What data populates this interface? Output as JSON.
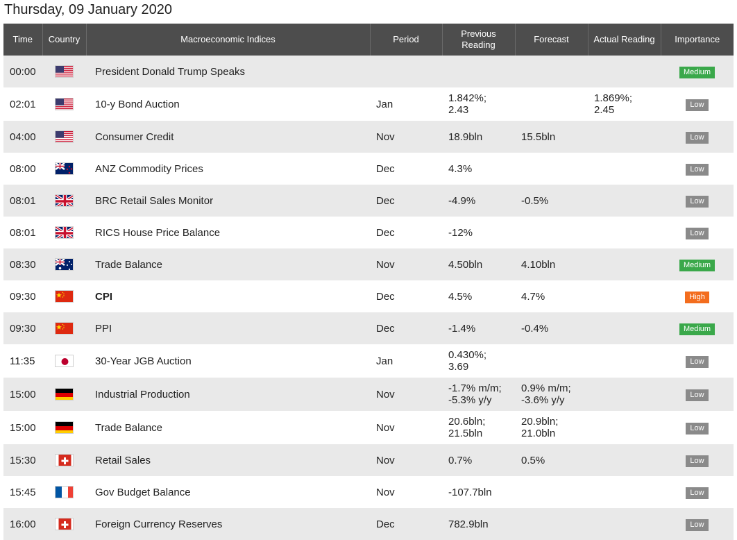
{
  "page": {
    "date_title": "Thursday, 09 January 2020"
  },
  "table": {
    "headers": {
      "time": "Time",
      "country": "Country",
      "index": "Macroeconomic Indices",
      "period": "Period",
      "previous_line1": "Previous",
      "previous_line2": "Reading",
      "forecast": "Forecast",
      "actual": "Actual Reading",
      "importance": "Importance"
    },
    "rows": [
      {
        "time": "00:00",
        "flag": "us-flag-icon",
        "index": "President Donald Trump Speaks",
        "period": "",
        "prev1": "",
        "prev2": "",
        "fc1": "",
        "fc2": "",
        "act1": "",
        "act2": "",
        "importance": "Medium",
        "level": "medium",
        "bold": false
      },
      {
        "time": "02:01",
        "flag": "us-flag-icon",
        "index": "10-y Bond Auction",
        "period": "Jan",
        "prev1": "1.842%;",
        "prev2": "2.43",
        "fc1": "",
        "fc2": "",
        "act1": "1.869%;",
        "act2": "2.45",
        "importance": "Low",
        "level": "low",
        "bold": false
      },
      {
        "time": "04:00",
        "flag": "us-flag-icon",
        "index": "Consumer Credit",
        "period": "Nov",
        "prev1": "18.9bln",
        "prev2": "",
        "fc1": "15.5bln",
        "fc2": "",
        "act1": "",
        "act2": "",
        "importance": "Low",
        "level": "low",
        "bold": false
      },
      {
        "time": "08:00",
        "flag": "nz-flag-icon",
        "index": "ANZ Commodity Prices",
        "period": "Dec",
        "prev1": "4.3%",
        "prev2": "",
        "fc1": "",
        "fc2": "",
        "act1": "",
        "act2": "",
        "importance": "Low",
        "level": "low",
        "bold": false
      },
      {
        "time": "08:01",
        "flag": "uk-flag-icon",
        "index": "BRC Retail Sales Monitor",
        "period": "Dec",
        "prev1": "-4.9%",
        "prev2": "",
        "fc1": "-0.5%",
        "fc2": "",
        "act1": "",
        "act2": "",
        "importance": "Low",
        "level": "low",
        "bold": false
      },
      {
        "time": "08:01",
        "flag": "uk-flag-icon",
        "index": "RICS House Price Balance",
        "period": "Dec",
        "prev1": "-12%",
        "prev2": "",
        "fc1": "",
        "fc2": "",
        "act1": "",
        "act2": "",
        "importance": "Low",
        "level": "low",
        "bold": false
      },
      {
        "time": "08:30",
        "flag": "au-flag-icon",
        "index": "Trade Balance",
        "period": "Nov",
        "prev1": "4.50bln",
        "prev2": "",
        "fc1": "4.10bln",
        "fc2": "",
        "act1": "",
        "act2": "",
        "importance": "Medium",
        "level": "medium",
        "bold": false
      },
      {
        "time": "09:30",
        "flag": "cn-flag-icon",
        "index": "CPI",
        "period": "Dec",
        "prev1": "4.5%",
        "prev2": "",
        "fc1": "4.7%",
        "fc2": "",
        "act1": "",
        "act2": "",
        "importance": "High",
        "level": "high",
        "bold": true
      },
      {
        "time": "09:30",
        "flag": "cn-flag-icon",
        "index": "PPI",
        "period": "Dec",
        "prev1": "-1.4%",
        "prev2": "",
        "fc1": "-0.4%",
        "fc2": "",
        "act1": "",
        "act2": "",
        "importance": "Medium",
        "level": "medium",
        "bold": false
      },
      {
        "time": "11:35",
        "flag": "jp-flag-icon",
        "index": "30-Year JGB Auction",
        "period": "Jan",
        "prev1": "0.430%;",
        "prev2": "3.69",
        "fc1": "",
        "fc2": "",
        "act1": "",
        "act2": "",
        "importance": "Low",
        "level": "low",
        "bold": false
      },
      {
        "time": "15:00",
        "flag": "de-flag-icon",
        "index": "Industrial Production",
        "period": "Nov",
        "prev1": "-1.7% m/m;",
        "prev2": "-5.3% y/y",
        "fc1": "0.9% m/m;",
        "fc2": "-3.6% y/y",
        "act1": "",
        "act2": "",
        "importance": "Low",
        "level": "low",
        "bold": false
      },
      {
        "time": "15:00",
        "flag": "de-flag-icon",
        "index": "Trade Balance",
        "period": "Nov",
        "prev1": "20.6bln;",
        "prev2": "21.5bln",
        "fc1": "20.9bln;",
        "fc2": "21.0bln",
        "act1": "",
        "act2": "",
        "importance": "Low",
        "level": "low",
        "bold": false
      },
      {
        "time": "15:30",
        "flag": "ch-flag-icon",
        "index": "Retail Sales",
        "period": "Nov",
        "prev1": "0.7%",
        "prev2": "",
        "fc1": "0.5%",
        "fc2": "",
        "act1": "",
        "act2": "",
        "importance": "Low",
        "level": "low",
        "bold": false
      },
      {
        "time": "15:45",
        "flag": "fr-flag-icon",
        "index": "Gov Budget Balance",
        "period": "Nov",
        "prev1": "-107.7bln",
        "prev2": "",
        "fc1": "",
        "fc2": "",
        "act1": "",
        "act2": "",
        "importance": "Low",
        "level": "low",
        "bold": false
      },
      {
        "time": "16:00",
        "flag": "ch-flag-icon",
        "index": "Foreign Currency Reserves",
        "period": "Dec",
        "prev1": "782.9bln",
        "prev2": "",
        "fc1": "",
        "fc2": "",
        "act1": "",
        "act2": "",
        "importance": "Low",
        "level": "low",
        "bold": false
      }
    ]
  },
  "colors": {
    "header_bg": "#4d4d4d",
    "row_alt_bg": "#e9e9e9",
    "low": "#8a8a8a",
    "medium": "#3aa84a",
    "high": "#f36d1e"
  }
}
